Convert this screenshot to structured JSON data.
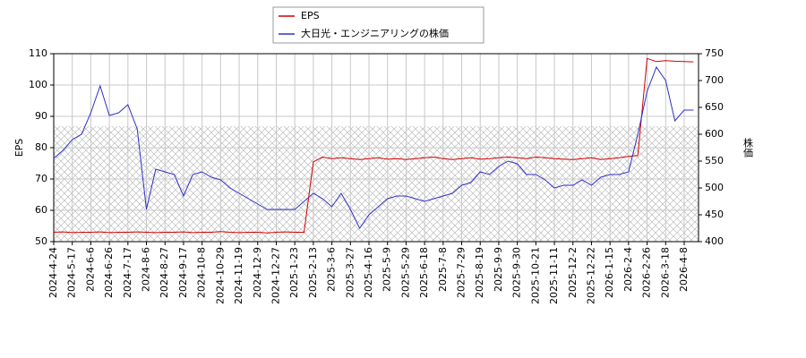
{
  "chart_data": {
    "type": "line",
    "categories": [
      "2024-4-24",
      null,
      "2024-5-17",
      null,
      "2024-6-6",
      null,
      "2024-6-26",
      null,
      "2024-7-17",
      null,
      "2024-8-6",
      null,
      "2024-8-27",
      null,
      "2024-9-17",
      null,
      "2024-10-8",
      null,
      "2024-10-29",
      null,
      "2024-11-19",
      null,
      "2024-12-9",
      null,
      "2024-12-27",
      null,
      "2025-1-23",
      null,
      "2025-2-13",
      null,
      "2025-3-6",
      null,
      "2025-3-27",
      null,
      "2025-4-16",
      null,
      "2025-5-9",
      null,
      "2025-5-29",
      null,
      "2025-6-18",
      null,
      "2025-7-8",
      null,
      "2025-7-29",
      null,
      "2025-8-19",
      null,
      "2025-9-9",
      null,
      "2025-9-30",
      null,
      "2025-10-21",
      null,
      "2025-11-11",
      null,
      "2025-12-2",
      null,
      "2025-12-22",
      null,
      "2026-1-15",
      null,
      "2026-2-4",
      null,
      "2026-2-26",
      null,
      "2026-3-18",
      null,
      "2026-4-8",
      null
    ],
    "series": [
      {
        "name": "EPS",
        "color": "#d00000",
        "axis": "y",
        "values": [
          53,
          53.1,
          52.9,
          53,
          53,
          53.1,
          52.9,
          53,
          53,
          53.1,
          53,
          52.9,
          53,
          53,
          53.1,
          52.9,
          53,
          53,
          53.2,
          53,
          52.9,
          53,
          53,
          52.8,
          53,
          53.1,
          53,
          53,
          75.5,
          77,
          76.5,
          76.8,
          76.5,
          76.2,
          76.5,
          76.8,
          76.3,
          76.5,
          76.2,
          76.5,
          76.8,
          77,
          76.5,
          76.2,
          76.5,
          76.8,
          76.3,
          76.5,
          76.8,
          77,
          76.8,
          76.5,
          77,
          76.8,
          76.5,
          76.3,
          76.2,
          76.5,
          76.8,
          76.2,
          76.5,
          76.8,
          77.2,
          77.5,
          108.5,
          107.5,
          107.8,
          107.6,
          107.5,
          107.4
        ]
      },
      {
        "name": "大日光・エンジニアリングの株価",
        "color": "#3030c8",
        "axis": "y2",
        "values": [
          555,
          570,
          590,
          600,
          640,
          690,
          635,
          640,
          655,
          610,
          460,
          535,
          530,
          525,
          485,
          525,
          530,
          520,
          515,
          500,
          490,
          480,
          470,
          460,
          460,
          460,
          460,
          475,
          490,
          480,
          465,
          490,
          460,
          425,
          450,
          465,
          480,
          485,
          485,
          480,
          475,
          480,
          485,
          490,
          505,
          510,
          530,
          525,
          540,
          550,
          545,
          525,
          525,
          515,
          500,
          505,
          505,
          515,
          505,
          520,
          525,
          525,
          530,
          600,
          680,
          725,
          700,
          625,
          645,
          645
        ]
      }
    ],
    "ylabel": "EPS",
    "y2label": "株価",
    "ylim": [
      50,
      110
    ],
    "yticks": [
      50,
      60,
      70,
      80,
      90,
      100,
      110
    ],
    "y2lim": [
      400,
      750
    ],
    "y2ticks": [
      400,
      450,
      500,
      550,
      600,
      650,
      700,
      750
    ],
    "grid": true
  }
}
